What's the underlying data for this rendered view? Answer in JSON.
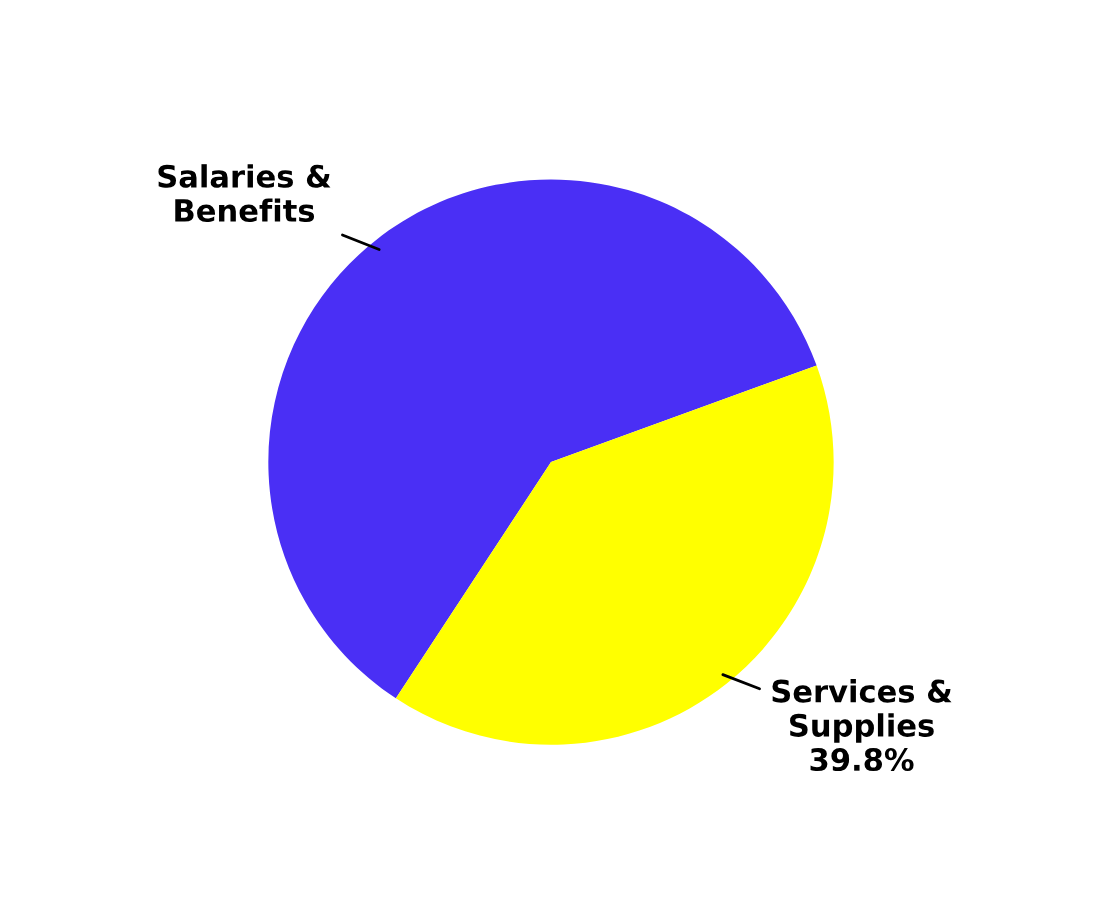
{
  "chart_data": {
    "type": "pie",
    "categories": [
      "Salaries &\nBenefits",
      "Services &\nSupplies"
    ],
    "values": [
      60.2,
      39.8
    ],
    "colors": [
      "#4a2ff5",
      "#ffff00"
    ],
    "value_labels": [
      null,
      "39.8%"
    ]
  }
}
